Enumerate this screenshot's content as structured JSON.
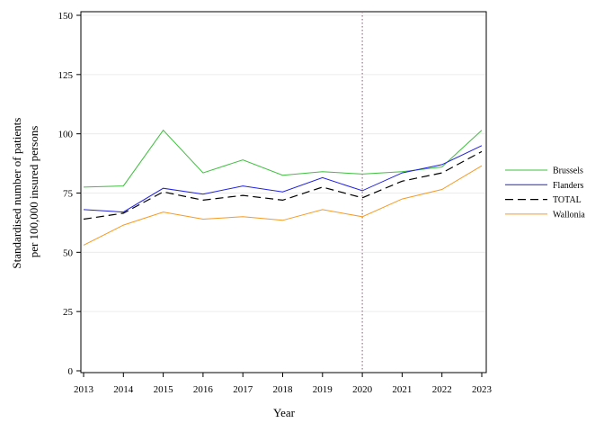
{
  "chart_data": {
    "type": "line",
    "xlabel": "Year",
    "ylabel_lines": [
      "Standardised number of patients",
      "per 100,000 insured persons"
    ],
    "x": [
      2013,
      2014,
      2015,
      2016,
      2017,
      2018,
      2019,
      2020,
      2021,
      2022,
      2023
    ],
    "xlim": [
      2013,
      2023
    ],
    "ylim": [
      0,
      150
    ],
    "y_ticks": [
      0,
      25,
      50,
      75,
      100,
      125,
      150
    ],
    "grid": "horizontal",
    "reference_line": {
      "x": 2020,
      "style": "dotted",
      "color": "#b06a8a"
    },
    "legend_position": "right",
    "series": [
      {
        "name": "Brussels",
        "color": "#3fbf3f",
        "dash": "solid",
        "values": [
          77.5,
          78,
          101.5,
          83.5,
          89,
          82.5,
          84,
          83,
          84,
          86,
          101.5
        ]
      },
      {
        "name": "Flanders",
        "color": "#2020e0",
        "dash": "solid",
        "values": [
          68,
          67,
          77,
          74.5,
          78,
          75.5,
          81.5,
          76,
          83.5,
          87,
          95
        ]
      },
      {
        "name": "TOTAL",
        "color": "#000000",
        "dash": "dashed",
        "values": [
          64,
          66.5,
          75.5,
          72,
          74,
          72,
          77.5,
          73,
          80,
          83.5,
          92.5
        ]
      },
      {
        "name": "Wallonia",
        "color": "#f59a23",
        "dash": "solid",
        "values": [
          53,
          61.5,
          67,
          64,
          65,
          63.5,
          68,
          65,
          72.5,
          76.5,
          86.5
        ]
      }
    ]
  }
}
